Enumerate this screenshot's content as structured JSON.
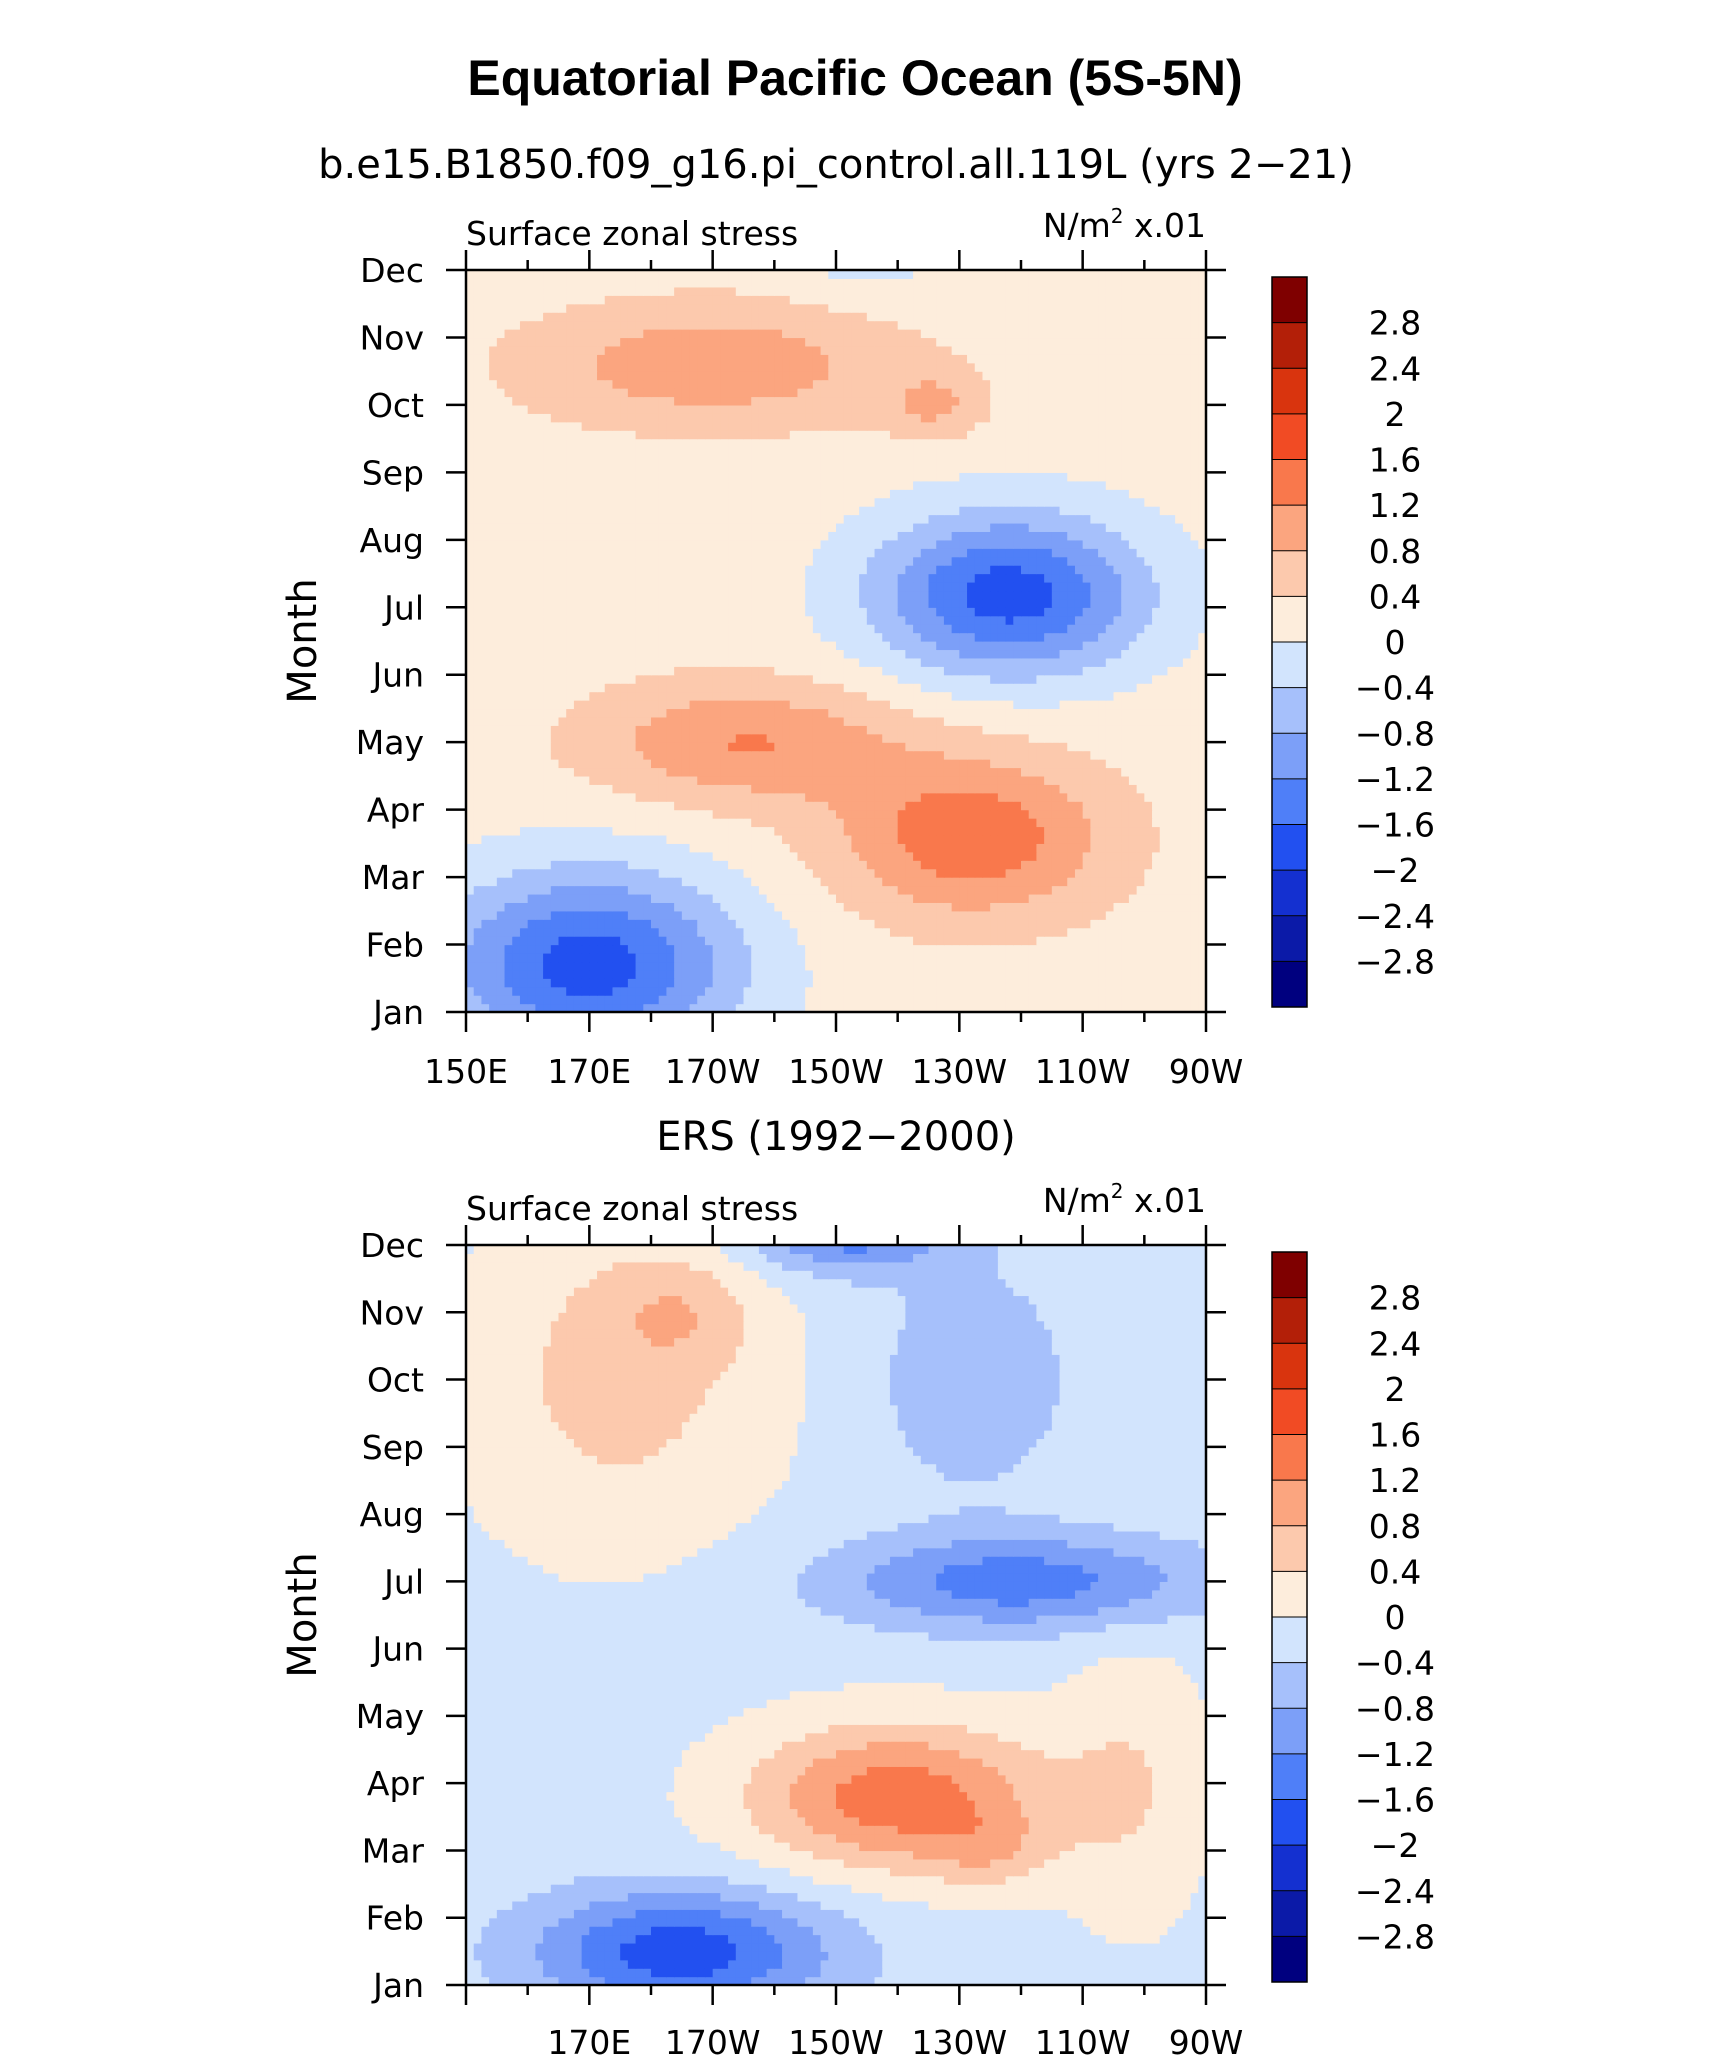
{
  "title": "Equatorial Pacific Ocean (5S-5N)",
  "colormap": [
    "#00007f",
    "#0b1aa8",
    "#1430d0",
    "#2250f0",
    "#4f7ff8",
    "#7c9ff8",
    "#a6c0fb",
    "#d2e4fd",
    "#fdeddc",
    "#fcc9ad",
    "#fba57f",
    "#f9784c",
    "#f14b24",
    "#d9340e",
    "#b31f08",
    "#7f0000"
  ],
  "colorbar_labels": [
    "2.8",
    "2.4",
    "2",
    "1.6",
    "1.2",
    "0.8",
    "0.4",
    "0",
    "−0.4",
    "−0.8",
    "−1.2",
    "−1.6",
    "−2",
    "−2.4",
    "−2.8"
  ],
  "chart_data": [
    {
      "type": "heatmap",
      "subtitle": "b.e15.B1850.f09_g16.pi_control.all.119L (yrs 2−21)",
      "left_label": "Surface zonal stress",
      "units_label": "N/m",
      "units_sup": "2",
      "units_scale": "x.01",
      "ylabel": "Month",
      "xlabel": "",
      "months": [
        "Jan",
        "Feb",
        "Mar",
        "Apr",
        "May",
        "Jun",
        "Jul",
        "Aug",
        "Sep",
        "Oct",
        "Nov",
        "Dec"
      ],
      "x_range": [
        150,
        270
      ],
      "x_ticks": [
        {
          "value": 150,
          "label": "150E"
        },
        {
          "value": 170,
          "label": "170E"
        },
        {
          "value": 190,
          "label": "170W"
        },
        {
          "value": 210,
          "label": "150W"
        },
        {
          "value": 230,
          "label": "130W"
        },
        {
          "value": 250,
          "label": "110W"
        },
        {
          "value": 270,
          "label": "90W"
        }
      ],
      "contour_levels": [
        -2.8,
        2.8,
        0.4
      ],
      "features": [
        {
          "name": "base",
          "value": 0.2,
          "lon": 210,
          "month": 6,
          "dlon": 600,
          "dmonth": 60,
          "shape": "flat"
        },
        {
          "name": "jan-feb-westerly-deficit",
          "value": -2.0,
          "lon": 170,
          "month": 1.7,
          "dlon": 24,
          "dmonth": 1.4
        },
        {
          "name": "jul-aug-easterly-deficit",
          "value": -2.0,
          "lon": 238,
          "month": 7.2,
          "dlon": 22,
          "dmonth": 1.2
        },
        {
          "name": "mar-apr-westerly",
          "value": 1.3,
          "lon": 232,
          "month": 3.6,
          "dlon": 22,
          "dmonth": 1.2
        },
        {
          "name": "may-westerly",
          "value": 1.0,
          "lon": 195,
          "month": 5.0,
          "dlon": 25,
          "dmonth": 0.9
        },
        {
          "name": "oct-nov-westerly",
          "value": 0.9,
          "lon": 190,
          "month": 10.6,
          "dlon": 30,
          "dmonth": 0.9
        },
        {
          "name": "oct-small-westerly",
          "value": 0.6,
          "lon": 226,
          "month": 10.0,
          "dlon": 8,
          "dmonth": 0.5
        },
        {
          "name": "dec-east-deficit",
          "value": -0.5,
          "lon": 215,
          "month": 12.3,
          "dlon": 12,
          "dmonth": 0.6
        }
      ]
    },
    {
      "type": "heatmap",
      "subtitle": "ERS (1992−2000)",
      "left_label": "Surface zonal stress",
      "units_label": "N/m",
      "units_sup": "2",
      "units_scale": "x.01",
      "ylabel": "Month",
      "xlabel": "",
      "months": [
        "Jan",
        "Feb",
        "Mar",
        "Apr",
        "May",
        "Jun",
        "Jul",
        "Aug",
        "Sep",
        "Oct",
        "Nov",
        "Dec"
      ],
      "x_range": [
        150,
        270
      ],
      "x_ticks": [
        {
          "value": 170,
          "label": "170E"
        },
        {
          "value": 190,
          "label": "170W"
        },
        {
          "value": 210,
          "label": "150W"
        },
        {
          "value": 230,
          "label": "130W"
        },
        {
          "value": 250,
          "label": "110W"
        },
        {
          "value": 270,
          "label": "90W"
        }
      ],
      "contour_levels": [
        -2.8,
        2.8,
        0.4
      ],
      "features": [
        {
          "name": "base",
          "value": -0.15,
          "lon": 210,
          "month": 6,
          "dlon": 600,
          "dmonth": 60,
          "shape": "flat"
        },
        {
          "name": "jan-feb-westerly-deficit",
          "value": -1.7,
          "lon": 185,
          "month": 1.5,
          "dlon": 24,
          "dmonth": 0.9
        },
        {
          "name": "mar-apr-westerly",
          "value": 1.6,
          "lon": 220,
          "month": 3.8,
          "dlon": 24,
          "dmonth": 1.1
        },
        {
          "name": "mar-peak",
          "value": 0.5,
          "lon": 235,
          "month": 3.0,
          "dlon": 10,
          "dmonth": 0.6
        },
        {
          "name": "jul-easterly-deficit",
          "value": -1.3,
          "lon": 240,
          "month": 7.0,
          "dlon": 30,
          "dmonth": 0.7
        },
        {
          "name": "west-sep-nov-westerly",
          "value": 0.7,
          "lon": 175,
          "month": 10.0,
          "dlon": 25,
          "dmonth": 2.5
        },
        {
          "name": "nov-westerly-core",
          "value": 0.5,
          "lon": 185,
          "month": 11.0,
          "dlon": 12,
          "dmonth": 0.8
        },
        {
          "name": "dec-easterly-deficit",
          "value": -1.3,
          "lon": 212,
          "month": 12.2,
          "dlon": 16,
          "dmonth": 0.6
        },
        {
          "name": "oct-deficit",
          "value": -0.6,
          "lon": 232,
          "month": 10.0,
          "dlon": 15,
          "dmonth": 1.6
        },
        {
          "name": "east-spring-westerly",
          "value": 0.5,
          "lon": 258,
          "month": 4.0,
          "dlon": 12,
          "dmonth": 2.2
        }
      ]
    }
  ]
}
